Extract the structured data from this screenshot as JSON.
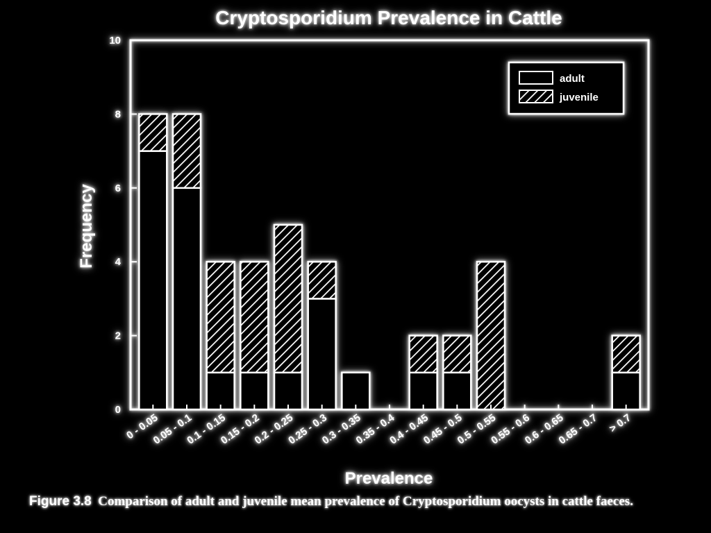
{
  "caption": {
    "number": "Figure 3.8",
    "text": "Comparison of adult and juvenile mean prevalence of Cryptosporidium oocysts in cattle faeces."
  },
  "colors": {
    "foreground": "#ffffff",
    "background": "#000000"
  },
  "chart_data": {
    "type": "bar",
    "stacked": true,
    "title": "Cryptosporidium Prevalence in Cattle",
    "xlabel": "Prevalence",
    "ylabel": "Frequency",
    "ylim": [
      0,
      10
    ],
    "yticks": [
      0,
      2,
      4,
      6,
      8,
      10
    ],
    "grid": false,
    "legend_position": "top-right",
    "categories": [
      "0 - 0.05",
      "0.05 - 0.1",
      "0.1 - 0.15",
      "0.15 - 0.2",
      "0.2 - 0.25",
      "0.25 - 0.3",
      "0.3 - 0.35",
      "0.35 - 0.4",
      "0.4 - 0.45",
      "0.45 - 0.5",
      "0.5 - 0.55",
      "0.55 - 0.6",
      "0.6 - 0.65",
      "0.65 - 0.7",
      "> 0.7"
    ],
    "series": [
      {
        "name": "adult",
        "pattern": "open",
        "values": [
          7,
          6,
          1,
          1,
          1,
          3,
          1,
          0,
          1,
          1,
          0,
          0,
          0,
          0,
          1
        ]
      },
      {
        "name": "juvenile",
        "pattern": "hatched",
        "values": [
          1,
          2,
          3,
          3,
          4,
          1,
          0,
          0,
          1,
          1,
          4,
          0,
          0,
          0,
          1
        ]
      }
    ]
  }
}
